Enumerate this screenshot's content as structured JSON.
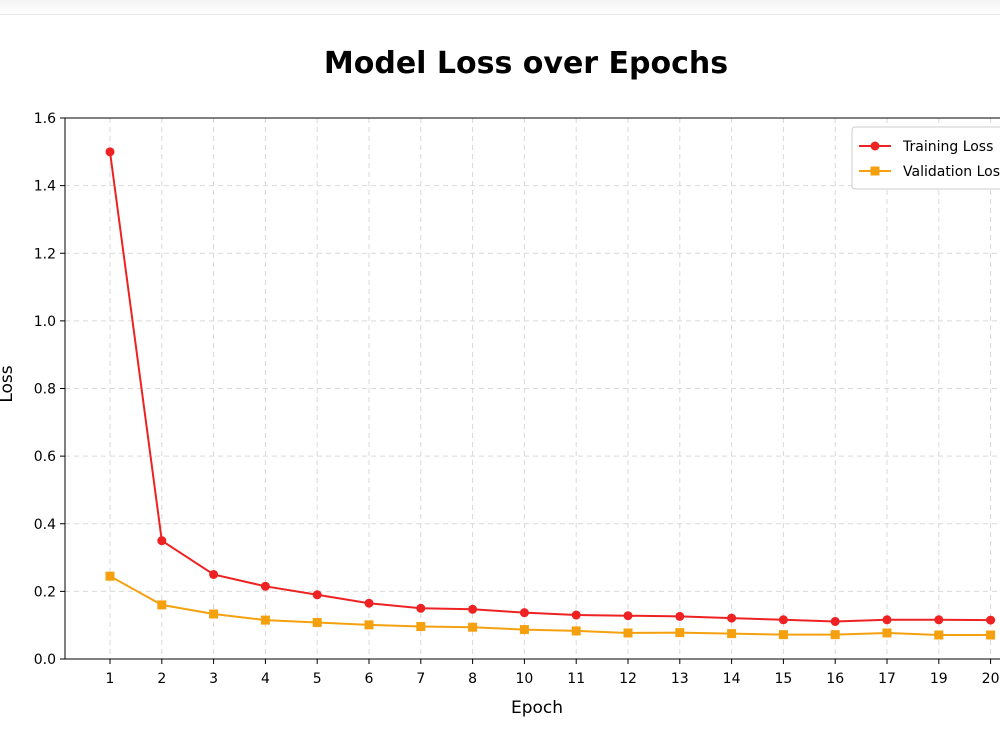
{
  "chart_data": {
    "type": "line",
    "title": "Model Loss over Epochs",
    "xlabel": "Epoch",
    "ylabel": "Loss",
    "categories": [
      "1",
      "2",
      "3",
      "4",
      "5",
      "6",
      "7",
      "8",
      "10",
      "11",
      "12",
      "13",
      "14",
      "15",
      "16",
      "17",
      "19",
      "20"
    ],
    "ylim": [
      0,
      1.6
    ],
    "yticks": [
      "0.0",
      "0.2",
      "0.4",
      "0.6",
      "0.8",
      "1.0",
      "1.2",
      "1.4",
      "1.6"
    ],
    "grid": true,
    "legend_position": "top-right",
    "series": [
      {
        "name": "Training Loss",
        "color": "#ee2222",
        "marker": "circle",
        "values": [
          1.5,
          0.35,
          0.25,
          0.215,
          0.19,
          0.165,
          0.15,
          0.147,
          0.137,
          0.13,
          0.128,
          0.126,
          0.121,
          0.116,
          0.111,
          0.116,
          0.116,
          0.115
        ]
      },
      {
        "name": "Validation Loss",
        "color": "#f5a10f",
        "marker": "square",
        "values": [
          0.245,
          0.16,
          0.133,
          0.115,
          0.108,
          0.101,
          0.096,
          0.094,
          0.087,
          0.083,
          0.077,
          0.078,
          0.075,
          0.072,
          0.072,
          0.077,
          0.071,
          0.071
        ]
      }
    ]
  }
}
